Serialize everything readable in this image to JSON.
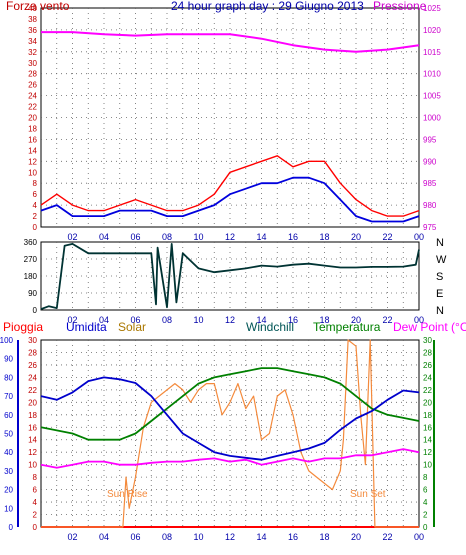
{
  "header": {
    "left_label": "Forza vento",
    "title": "24 hour graph day : 29 Giugno 2013",
    "right_label": "Pressione"
  },
  "colors": {
    "wind": "#ff0000",
    "wind_avg": "#0000dd",
    "pressure": "#ff00ff",
    "direction": "#003333",
    "rain": "#ff0000",
    "humidity": "#0000cc",
    "solar": "#f48a3c",
    "windchill": "#0000cc",
    "temperature": "#008000",
    "dewpoint": "#ff00ff",
    "grid": "#000000",
    "left_axis_top": "#c00000",
    "right_axis_top": "#cc00cc",
    "left_axis_bottom": "#0000cc",
    "right_axis_bottom": "#008000"
  },
  "chart_data": [
    {
      "type": "line",
      "panel": "wind_pressure",
      "x_ticks": [
        "02",
        "04",
        "06",
        "08",
        "10",
        "12",
        "14",
        "16",
        "18",
        "20",
        "22",
        "00"
      ],
      "y_left": {
        "label": "Forza vento",
        "ylim": [
          0,
          40
        ],
        "ticks": [
          0,
          2,
          4,
          6,
          8,
          10,
          12,
          14,
          16,
          18,
          20,
          22,
          24,
          26,
          28,
          30,
          32,
          34,
          36,
          38,
          40
        ]
      },
      "y_right": {
        "label": "Pressione",
        "ylim": [
          975,
          1025
        ],
        "ticks": [
          975,
          980,
          985,
          990,
          995,
          1000,
          1005,
          1010,
          1015,
          1020,
          1025
        ]
      },
      "grid": true,
      "series": [
        {
          "name": "Forza vento",
          "axis": "left",
          "x": [
            0,
            1,
            2,
            3,
            4,
            5,
            6,
            7,
            8,
            9,
            10,
            11,
            12,
            13,
            14,
            15,
            16,
            17,
            18,
            19,
            20,
            21,
            22,
            23,
            24
          ],
          "values": [
            4,
            6,
            4,
            3,
            3,
            4,
            5,
            4,
            3,
            3,
            4,
            6,
            10,
            11,
            12,
            13,
            11,
            12,
            12,
            8,
            5,
            3,
            2,
            2,
            3
          ]
        },
        {
          "name": "wind average",
          "axis": "left",
          "x": [
            0,
            1,
            2,
            3,
            4,
            5,
            6,
            7,
            8,
            9,
            10,
            11,
            12,
            13,
            14,
            15,
            16,
            17,
            18,
            19,
            20,
            21,
            22,
            23,
            24
          ],
          "values": [
            3,
            4,
            2,
            2,
            2,
            3,
            3,
            3,
            2,
            2,
            3,
            4,
            6,
            7,
            8,
            8,
            9,
            9,
            8,
            5,
            2,
            1,
            1,
            1,
            2
          ]
        },
        {
          "name": "Pressione",
          "axis": "right",
          "x": [
            0,
            2,
            4,
            6,
            8,
            10,
            12,
            14,
            16,
            18,
            20,
            22,
            24
          ],
          "values": [
            1019.5,
            1019.5,
            1019,
            1018.7,
            1019,
            1019,
            1019,
            1018,
            1016.5,
            1015.5,
            1015,
            1015.5,
            1016.5
          ]
        }
      ]
    },
    {
      "type": "line",
      "panel": "wind_direction",
      "x_ticks": [
        "02",
        "04",
        "06",
        "08",
        "10",
        "12",
        "14",
        "16",
        "18",
        "20",
        "22",
        "00"
      ],
      "y_left": {
        "ylim": [
          0,
          360
        ],
        "ticks": [
          0,
          90,
          180,
          270,
          360
        ]
      },
      "y_right": {
        "ticks": [
          "N",
          "W",
          "S",
          "E",
          "N"
        ]
      },
      "grid": true,
      "series": [
        {
          "name": "direction",
          "x": [
            0,
            0.5,
            1,
            1.5,
            2,
            3,
            4,
            5,
            6,
            7,
            7.3,
            7.4,
            8,
            8.3,
            8.6,
            9,
            10,
            11,
            12,
            13,
            14,
            15,
            16,
            17,
            18,
            19,
            20,
            21,
            22,
            23,
            23.8,
            24
          ],
          "values": [
            5,
            20,
            10,
            340,
            350,
            300,
            300,
            300,
            300,
            300,
            30,
            330,
            15,
            350,
            40,
            300,
            220,
            200,
            210,
            220,
            235,
            230,
            240,
            245,
            235,
            225,
            225,
            228,
            228,
            230,
            240,
            320
          ]
        }
      ]
    },
    {
      "type": "line",
      "panel": "temperature",
      "x_ticks": [
        "02",
        "04",
        "06",
        "08",
        "10",
        "12",
        "14",
        "16",
        "18",
        "20",
        "22",
        "00"
      ],
      "y_left_rain": {
        "label": "Pioggia",
        "ylim": [
          0,
          30
        ],
        "ticks": [
          0,
          2,
          4,
          6,
          8,
          10,
          12,
          14,
          16,
          18,
          20,
          22,
          24,
          26,
          28,
          30
        ]
      },
      "y_left_humidity": {
        "label": "Umidita",
        "ylim": [
          0,
          100
        ],
        "ticks": [
          0,
          10,
          20,
          30,
          40,
          50,
          60,
          70,
          80,
          90,
          100
        ]
      },
      "y_right": {
        "label": "Dew Point (°C)",
        "ylim": [
          0,
          30
        ],
        "ticks": [
          0,
          2,
          4,
          6,
          8,
          10,
          12,
          14,
          16,
          18,
          20,
          22,
          24,
          26,
          28,
          30
        ]
      },
      "grid": true,
      "annotations": [
        "Sun Rise",
        "Sun Set"
      ],
      "series": [
        {
          "name": "Pioggia",
          "x": [
            0,
            24
          ],
          "values": [
            0,
            0
          ]
        },
        {
          "name": "Umidita",
          "x": [
            0,
            1,
            2,
            3,
            4,
            5,
            6,
            7,
            8,
            9,
            10,
            11,
            12,
            13,
            14,
            15,
            16,
            17,
            18,
            19,
            20,
            21,
            22,
            23,
            24
          ],
          "values": [
            70,
            68,
            72,
            78,
            80,
            79,
            77,
            70,
            60,
            50,
            45,
            40,
            38,
            37,
            36,
            38,
            40,
            42,
            45,
            52,
            58,
            62,
            68,
            73,
            72
          ]
        },
        {
          "name": "Solar",
          "x": [
            0,
            5.2,
            5.4,
            5.6,
            6,
            6.5,
            7,
            7.5,
            8,
            8.5,
            9,
            9.5,
            10,
            10.5,
            11,
            11.5,
            12,
            12.5,
            13,
            13.5,
            14,
            14.5,
            15,
            15.5,
            16,
            16.5,
            17,
            17.5,
            18,
            18.5,
            19,
            19.2,
            19.5,
            20,
            20.3,
            20.6,
            20.9,
            21,
            21.2,
            24
          ],
          "values": [
            0,
            0,
            8,
            3,
            8,
            16,
            20,
            21,
            22,
            23,
            22,
            20,
            22,
            23,
            23,
            18,
            20,
            23,
            19,
            21,
            14,
            15,
            21,
            22,
            18,
            12,
            9,
            8,
            7,
            6,
            9,
            14,
            30,
            29,
            18,
            10,
            30,
            20,
            0,
            0
          ]
        },
        {
          "name": "Windchill",
          "x": [
            0,
            1,
            2,
            3,
            4,
            5,
            6,
            7,
            8,
            9,
            10,
            11,
            12,
            13,
            14,
            15,
            16,
            17,
            18,
            19,
            20,
            21,
            22,
            23,
            24
          ],
          "values": [
            16,
            15.5,
            15,
            14,
            14,
            14,
            15,
            17,
            19,
            21,
            23,
            24,
            24.5,
            25,
            25.5,
            25.5,
            25,
            24.5,
            24,
            23,
            21,
            19,
            18,
            17.5,
            17
          ]
        },
        {
          "name": "Temperatura",
          "x": [
            0,
            1,
            2,
            3,
            4,
            5,
            6,
            7,
            8,
            9,
            10,
            11,
            12,
            13,
            14,
            15,
            16,
            17,
            18,
            19,
            20,
            21,
            22,
            23,
            24
          ],
          "values": [
            16,
            15.5,
            15,
            14,
            14,
            14,
            15,
            17,
            19,
            21,
            23,
            24,
            24.5,
            25,
            25.5,
            25.5,
            25,
            24.5,
            24,
            23,
            21,
            19,
            18,
            17.5,
            17
          ]
        },
        {
          "name": "Dew Point (°C)",
          "x": [
            0,
            1,
            2,
            3,
            4,
            5,
            6,
            7,
            8,
            9,
            10,
            11,
            12,
            13,
            14,
            15,
            16,
            17,
            18,
            19,
            20,
            21,
            22,
            23,
            24
          ],
          "values": [
            10,
            9.5,
            10,
            10.5,
            10.5,
            10,
            10,
            10.3,
            10.5,
            10.5,
            10.8,
            11,
            10.5,
            10.8,
            10,
            10.5,
            11,
            10.5,
            11,
            11,
            11.5,
            11.5,
            12,
            12.5,
            12
          ]
        }
      ]
    }
  ],
  "bottom_headers": {
    "rain": "Pioggia",
    "humidity": "Umidita",
    "solar": "Solar",
    "windchill": "Windchill",
    "temperature": "Temperatura",
    "dewpoint": "Dew Point (°C)"
  },
  "direction_labels": [
    "N",
    "W",
    "S",
    "E",
    "N"
  ],
  "annotations": {
    "sunrise": "Sun Rise",
    "sunset": "Sun Set"
  }
}
